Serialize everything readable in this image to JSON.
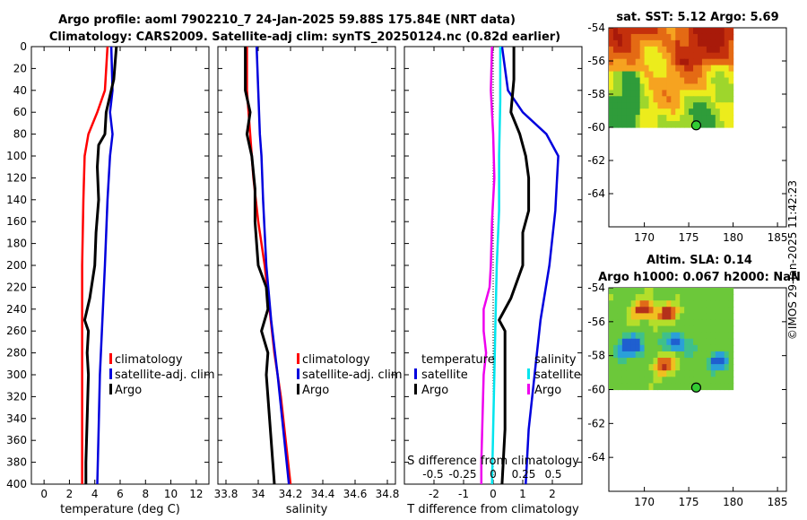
{
  "title_line1": "Argo profile: aoml 7902210_7 24-Jan-2025 59.88S 175.84E (NRT data)",
  "title_line2": "Climatology: CARS2009. Satellite-adj clim: synTS_20250124.nc (0.82d earlier)",
  "credit": "©IMOS 29-Jan-2025 11:42:23",
  "colors": {
    "clim": "#ff0000",
    "sat": "#0000dd",
    "argo": "#000000",
    "cyan": "#00e5ee",
    "magenta": "#ee00ee"
  },
  "legend_main": [
    "climatology",
    "satellite-adj. clim",
    "Argo"
  ],
  "legend_diff": {
    "left_title": "temperature",
    "right_title": "salinity",
    "items_left": [
      "satellite",
      "Argo"
    ],
    "items_right": [
      "satellite",
      "Argo"
    ]
  },
  "diff_top_axis": {
    "label": "S difference from climatology",
    "ticks": [
      "-0.5",
      "-0.25",
      "0",
      "0.25",
      "0.5"
    ]
  },
  "chart_data": [
    {
      "type": "line",
      "id": "temperature",
      "xlabel": "temperature (deg C)",
      "ylabel": "",
      "xlim": [
        -1,
        13
      ],
      "ylim": [
        400,
        0
      ],
      "xticks": [
        0,
        2,
        4,
        6,
        8,
        10,
        12
      ],
      "yticks": [
        0,
        20,
        40,
        60,
        80,
        100,
        120,
        140,
        160,
        180,
        200,
        220,
        240,
        260,
        280,
        300,
        320,
        340,
        360,
        380,
        400
      ],
      "series": [
        {
          "name": "climatology",
          "color": "clim",
          "depth": [
            0,
            40,
            60,
            80,
            100,
            140,
            200,
            250,
            300,
            350,
            400
          ],
          "values": [
            5.0,
            4.8,
            4.2,
            3.5,
            3.2,
            3.1,
            3.0,
            3.0,
            3.0,
            3.0,
            3.0
          ]
        },
        {
          "name": "satellite-adj. clim",
          "color": "sat",
          "depth": [
            0,
            40,
            60,
            80,
            100,
            140,
            200,
            300,
            350,
            400
          ],
          "values": [
            5.3,
            5.4,
            5.2,
            5.4,
            5.2,
            5.0,
            4.8,
            4.4,
            4.3,
            4.2
          ]
        },
        {
          "name": "Argo",
          "color": "argo",
          "depth": [
            0,
            30,
            60,
            80,
            90,
            110,
            140,
            170,
            200,
            230,
            250,
            260,
            280,
            300,
            340,
            380,
            400
          ],
          "values": [
            5.7,
            5.5,
            4.9,
            4.8,
            4.3,
            4.2,
            4.3,
            4.1,
            4.0,
            3.6,
            3.2,
            3.5,
            3.4,
            3.5,
            3.4,
            3.3,
            3.3
          ]
        }
      ]
    },
    {
      "type": "line",
      "id": "salinity",
      "xlabel": "salinity",
      "ylabel": "",
      "xlim": [
        33.75,
        34.85
      ],
      "ylim": [
        400,
        0
      ],
      "xticks": [
        33.8,
        34,
        34.2,
        34.4,
        34.6,
        34.8
      ],
      "yticks": [
        0,
        20,
        40,
        60,
        80,
        100,
        120,
        140,
        160,
        180,
        200,
        220,
        240,
        260,
        280,
        300,
        320,
        340,
        360,
        380,
        400
      ],
      "series": [
        {
          "name": "climatology",
          "color": "clim",
          "depth": [
            0,
            40,
            80,
            120,
            160,
            200,
            240,
            280,
            320,
            360,
            400
          ],
          "values": [
            33.93,
            33.93,
            33.95,
            33.97,
            34.0,
            34.04,
            34.07,
            34.1,
            34.14,
            34.17,
            34.2
          ]
        },
        {
          "name": "satellite-adj. clim",
          "color": "sat",
          "depth": [
            0,
            40,
            80,
            100,
            140,
            200,
            250,
            300,
            400
          ],
          "values": [
            33.99,
            34.0,
            34.01,
            34.02,
            34.03,
            34.05,
            34.08,
            34.12,
            34.19
          ]
        },
        {
          "name": "Argo",
          "color": "argo",
          "depth": [
            0,
            40,
            60,
            80,
            100,
            130,
            160,
            200,
            220,
            240,
            260,
            280,
            300,
            340,
            380,
            400
          ],
          "values": [
            33.92,
            33.92,
            33.95,
            33.93,
            33.96,
            33.98,
            33.98,
            34.0,
            34.05,
            34.06,
            34.02,
            34.06,
            34.05,
            34.07,
            34.09,
            34.1
          ]
        }
      ]
    },
    {
      "type": "line",
      "id": "difference",
      "xlabel": "T difference from climatology",
      "ylabel": "",
      "xlim": [
        -3,
        3
      ],
      "ylim": [
        400,
        0
      ],
      "xticks": [
        -2,
        -1,
        0,
        1,
        2
      ],
      "s_xlim": [
        -0.75,
        0.75
      ],
      "series": [
        {
          "name": "temperature satellite",
          "color": "sat",
          "depth": [
            0,
            40,
            60,
            80,
            100,
            150,
            200,
            250,
            300,
            350,
            400
          ],
          "values": [
            0.3,
            0.5,
            1.0,
            1.8,
            2.2,
            2.1,
            1.9,
            1.6,
            1.4,
            1.2,
            1.1
          ]
        },
        {
          "name": "temperature Argo",
          "color": "argo",
          "depth": [
            0,
            30,
            60,
            80,
            100,
            120,
            150,
            170,
            200,
            230,
            250,
            260,
            300,
            350,
            400
          ],
          "values": [
            0.7,
            0.7,
            0.6,
            0.9,
            1.1,
            1.2,
            1.2,
            1.0,
            1.0,
            0.6,
            0.2,
            0.4,
            0.4,
            0.4,
            0.3
          ]
        },
        {
          "name": "salinity satellite",
          "color": "cyan",
          "depth": [
            0,
            50,
            100,
            150,
            200,
            250,
            300,
            350,
            400
          ],
          "values": [
            0.06,
            0.06,
            0.05,
            0.05,
            0.03,
            0.02,
            0.01,
            0.0,
            -0.01
          ]
        },
        {
          "name": "salinity Argo",
          "color": "magenta",
          "depth": [
            0,
            40,
            80,
            120,
            160,
            200,
            220,
            240,
            260,
            280,
            300,
            340,
            380,
            400
          ],
          "values": [
            -0.01,
            -0.02,
            0.0,
            0.01,
            -0.01,
            -0.02,
            -0.03,
            -0.08,
            -0.08,
            -0.06,
            -0.08,
            -0.09,
            -0.1,
            -0.1
          ]
        }
      ]
    },
    {
      "type": "heatmap",
      "id": "sst_map",
      "title": "sat. SST: 5.12 Argo: 5.69",
      "xlim": [
        166,
        186
      ],
      "ylim": [
        -66,
        -54
      ],
      "xticks": [
        170,
        175,
        180,
        185
      ],
      "yticks": [
        -54,
        -56,
        -58,
        -60,
        -62,
        -64
      ],
      "data_extent": {
        "lon": [
          166,
          180
        ],
        "lat": [
          -60,
          -54
        ]
      },
      "marker": {
        "lon": 175.84,
        "lat": -59.88
      }
    },
    {
      "type": "heatmap",
      "id": "sla_map",
      "title": "Altim. SLA: 0.14",
      "subtitle": "Argo h1000: 0.067 h2000: NaN",
      "xlim": [
        166,
        186
      ],
      "ylim": [
        -66,
        -54
      ],
      "xticks": [
        170,
        175,
        180,
        185
      ],
      "yticks": [
        -54,
        -56,
        -58,
        -60,
        -62,
        -64
      ],
      "data_extent": {
        "lon": [
          166,
          180
        ],
        "lat": [
          -60,
          -54
        ]
      },
      "marker": {
        "lon": 175.84,
        "lat": -59.88
      }
    }
  ]
}
